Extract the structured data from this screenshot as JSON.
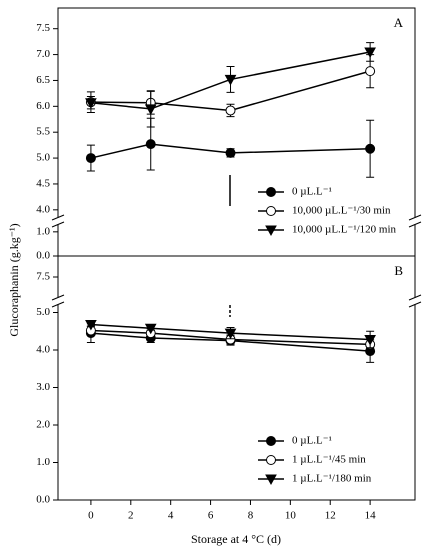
{
  "chart_data": [
    {
      "type": "line",
      "panel_label": "A",
      "x": [
        0,
        3,
        7,
        14
      ],
      "xlim": [
        -1.65,
        16.25
      ],
      "segments": [
        {
          "ylim": [
            0,
            1.2
          ],
          "yticks": [
            {
              "value": 0,
              "label": "0.0"
            },
            {
              "value": 1,
              "label": "1.0"
            }
          ]
        },
        {
          "ylim": [
            3.9,
            7.9
          ],
          "yticks": [
            {
              "value": 4,
              "label": "4.0"
            },
            4.5,
            {
              "value": 5,
              "label": "5.0"
            },
            5.5,
            {
              "value": 6,
              "label": "6.0"
            },
            6.5,
            {
              "value": 7,
              "label": "7.0"
            },
            7.5
          ]
        }
      ],
      "series": [
        {
          "name": "0 µL.L⁻¹",
          "marker": "circle-filled",
          "color": "#000000",
          "values": [
            5.0,
            5.27,
            5.1,
            5.18
          ],
          "errors": [
            0.25,
            0.5,
            0.08,
            0.55
          ]
        },
        {
          "name": "10,000 µL.L⁻¹/30 min",
          "marker": "circle-open",
          "color": "#000000",
          "values": [
            6.08,
            6.07,
            5.92,
            6.68
          ],
          "errors": [
            0.2,
            0.22,
            0.12,
            0.32
          ]
        },
        {
          "name": "10,000 µL.L⁻¹/120 min",
          "marker": "triangle-down",
          "color": "#000000",
          "values": [
            6.07,
            5.95,
            6.52,
            7.05
          ],
          "errors": [
            0.12,
            0.35,
            0.25,
            0.18
          ]
        }
      ]
    },
    {
      "type": "line",
      "panel_label": "B",
      "x": [
        0,
        3,
        7,
        14
      ],
      "xlim": [
        -1.65,
        16.25
      ],
      "xticks": [
        0,
        2,
        4,
        6,
        8,
        10,
        12,
        14
      ],
      "xlabel": "Storage at 4 °C (d)",
      "ylabel": "Glucoraphanin (g.kg⁻¹)",
      "segments": [
        {
          "ylim": [
            0,
            5.2
          ],
          "yticks": [
            {
              "value": 0,
              "label": "0.0"
            },
            {
              "value": 1,
              "label": "1.0"
            },
            {
              "value": 2,
              "label": "2.0"
            },
            {
              "value": 3,
              "label": "3.0"
            },
            {
              "value": 4,
              "label": "4.0"
            },
            {
              "value": 5,
              "label": "5.0"
            }
          ]
        },
        {
          "ylim": [
            7.0,
            8.0
          ],
          "yticks": [
            7.5
          ]
        }
      ],
      "series": [
        {
          "name": "0 µL.L⁻¹",
          "marker": "circle-filled",
          "color": "#000000",
          "values": [
            4.45,
            4.32,
            4.25,
            3.97
          ],
          "errors": [
            0.25,
            0.12,
            0.12,
            0.3
          ]
        },
        {
          "name": "1 µL.L⁻¹/45 min",
          "marker": "circle-open",
          "color": "#000000",
          "values": [
            4.52,
            4.45,
            4.28,
            4.15
          ],
          "errors": [
            0.12,
            0.12,
            0.12,
            0.2
          ]
        },
        {
          "name": "1 µL.L⁻¹/180 min",
          "marker": "triangle-down",
          "color": "#000000",
          "values": [
            4.68,
            4.58,
            4.45,
            4.28
          ],
          "errors": [
            0.05,
            0.05,
            0.15,
            0.22
          ]
        }
      ]
    }
  ]
}
